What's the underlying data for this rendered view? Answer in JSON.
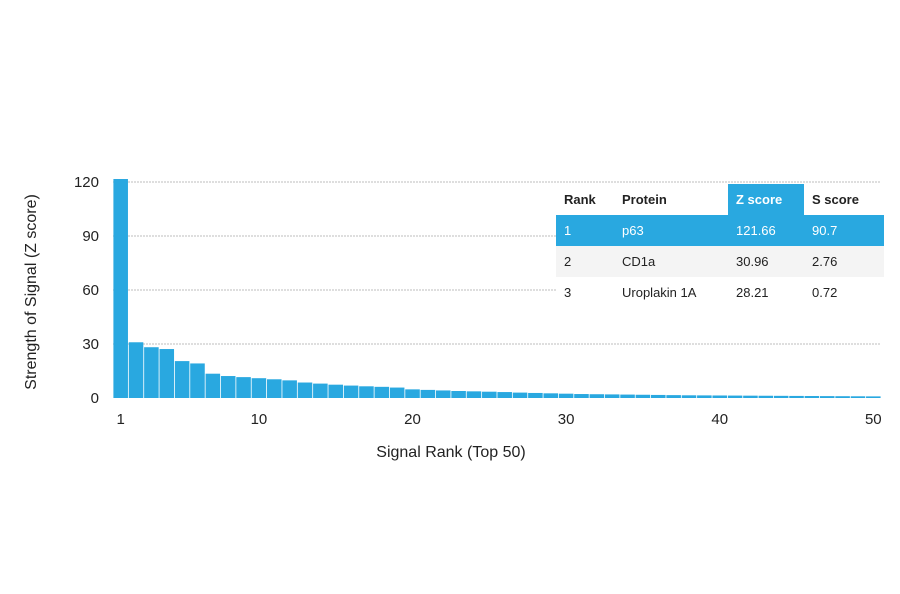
{
  "chart_data": {
    "type": "bar",
    "xlabel": "Signal Rank (Top 50)",
    "ylabel": "Strength of Signal (Z score)",
    "ylim": [
      0,
      120
    ],
    "xlim": [
      1,
      50
    ],
    "y_ticks": [
      "0",
      "30",
      "60",
      "90",
      "120"
    ],
    "x_ticks": [
      "1",
      "10",
      "20",
      "30",
      "40",
      "50"
    ],
    "grid": true,
    "x": [
      1,
      2,
      3,
      4,
      5,
      6,
      7,
      8,
      9,
      10,
      11,
      12,
      13,
      14,
      15,
      16,
      17,
      18,
      19,
      20,
      21,
      22,
      23,
      24,
      25,
      26,
      27,
      28,
      29,
      30,
      31,
      32,
      33,
      34,
      35,
      36,
      37,
      38,
      39,
      40,
      41,
      42,
      43,
      44,
      45,
      46,
      47,
      48,
      49,
      50
    ],
    "values": [
      121.66,
      30.96,
      28.21,
      27.2,
      20.5,
      19.2,
      13.5,
      12.2,
      11.6,
      11.0,
      10.4,
      9.8,
      8.6,
      8.0,
      7.4,
      6.9,
      6.5,
      6.2,
      5.8,
      4.8,
      4.5,
      4.2,
      3.9,
      3.7,
      3.5,
      3.3,
      3.0,
      2.8,
      2.6,
      2.4,
      2.2,
      2.1,
      2.0,
      1.9,
      1.8,
      1.7,
      1.6,
      1.5,
      1.45,
      1.4,
      1.35,
      1.3,
      1.25,
      1.2,
      1.15,
      1.1,
      1.05,
      1.0,
      0.95,
      0.9
    ]
  },
  "table": {
    "headers": [
      "Rank",
      "Protein",
      "Z score",
      "S score"
    ],
    "rows": [
      [
        "1",
        "p63",
        "121.66",
        "90.7"
      ],
      [
        "2",
        "CD1a",
        "30.96",
        "2.76"
      ],
      [
        "3",
        "Uroplakin 1A",
        "28.21",
        "0.72"
      ]
    ]
  },
  "colors": {
    "bar": "#29a8e0",
    "highlight": "#29a8e0"
  }
}
